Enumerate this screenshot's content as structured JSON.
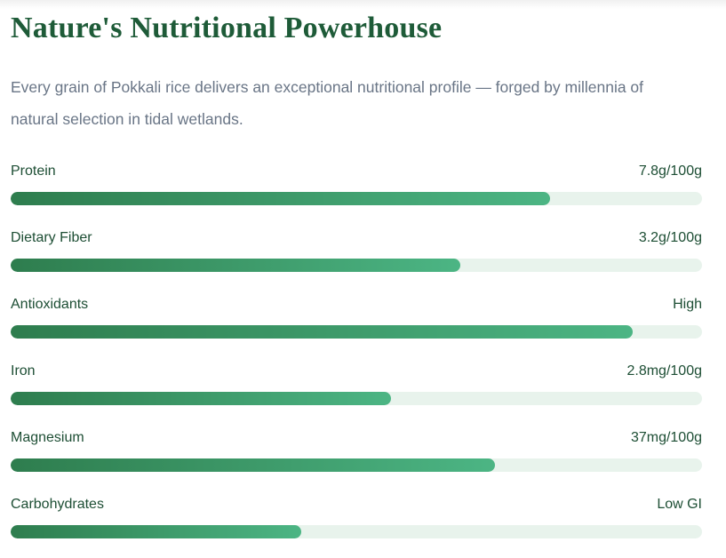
{
  "page": {
    "title": "Nature's Nutritional Powerhouse",
    "subtitle": "Every grain of Pokkali rice delivers an exceptional nutritional profile — forged by millennia of natural selection in tidal wetlands."
  },
  "nutrients": [
    {
      "label": "Protein",
      "value": "7.8g/100g",
      "percent": 78
    },
    {
      "label": "Dietary Fiber",
      "value": "3.2g/100g",
      "percent": 65
    },
    {
      "label": "Antioxidants",
      "value": "High",
      "percent": 90
    },
    {
      "label": "Iron",
      "value": "2.8mg/100g",
      "percent": 55
    },
    {
      "label": "Magnesium",
      "value": "37mg/100g",
      "percent": 70
    },
    {
      "label": "Carbohydrates",
      "value": "Low GI",
      "percent": 42
    }
  ],
  "colors": {
    "title": "#1e5b38",
    "subtitle": "#697586",
    "label": "#1d4e34",
    "bar_fill_start": "#2e7d4e",
    "bar_fill_end": "#4cb584",
    "bar_track": "#e8f3ec"
  },
  "chart_data": {
    "type": "bar",
    "orientation": "horizontal",
    "title": "Nature's Nutritional Powerhouse",
    "subtitle": "Every grain of Pokkali rice delivers an exceptional nutritional profile — forged by millennia of natural selection in tidal wetlands.",
    "categories": [
      "Protein",
      "Dietary Fiber",
      "Antioxidants",
      "Iron",
      "Magnesium",
      "Carbohydrates"
    ],
    "value_labels": [
      "7.8g/100g",
      "3.2g/100g",
      "High",
      "2.8mg/100g",
      "37mg/100g",
      "Low GI"
    ],
    "bar_fill_percent": [
      78,
      65,
      90,
      55,
      70,
      42
    ],
    "axis_range_percent": [
      0,
      100
    ],
    "grid": false,
    "legend": false
  }
}
